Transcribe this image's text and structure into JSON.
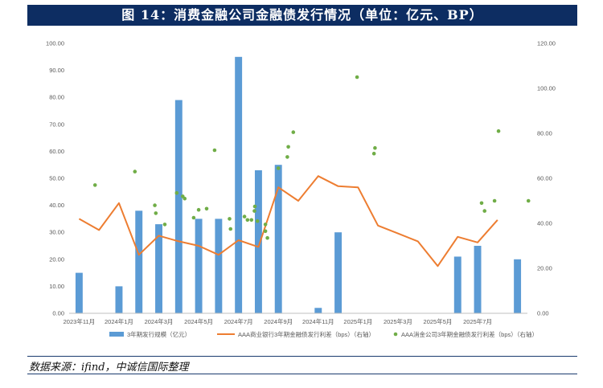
{
  "header": {
    "title": "图 14：消费金融公司金融债发行情况（单位：亿元、BP）"
  },
  "source": "数据来源：ifind，中诚信国际整理",
  "chart_data": {
    "type": "bar",
    "x_tick_labels": [
      "2023年11月",
      "2024年1月",
      "2024年3月",
      "2024年5月",
      "2024年7月",
      "2024年9月",
      "2024年11月",
      "2025年1月",
      "2025年3月",
      "2025年5月",
      "2025年7月"
    ],
    "left_axis": {
      "min": 0,
      "max": 100,
      "ticks": [
        "0.00",
        "10.00",
        "20.00",
        "30.00",
        "40.00",
        "50.00",
        "60.00",
        "70.00",
        "80.00",
        "90.00",
        "100.00"
      ]
    },
    "right_axis": {
      "min": 0,
      "max": 120,
      "ticks": [
        "0.00",
        "20.00",
        "40.00",
        "60.00",
        "80.00",
        "100.00",
        "120.00"
      ]
    },
    "bars": {
      "name": "3年期发行规模（亿元）",
      "color": "#5b9bd5",
      "points": [
        {
          "x": 0,
          "value": 15
        },
        {
          "x": 2,
          "value": 10
        },
        {
          "x": 3,
          "value": 38
        },
        {
          "x": 4,
          "value": 33
        },
        {
          "x": 5,
          "value": 79
        },
        {
          "x": 6,
          "value": 35
        },
        {
          "x": 7,
          "value": 35
        },
        {
          "x": 8,
          "value": 95
        },
        {
          "x": 9,
          "value": 53
        },
        {
          "x": 10,
          "value": 55
        },
        {
          "x": 12,
          "value": 2
        },
        {
          "x": 13,
          "value": 30
        },
        {
          "x": 19,
          "value": 21
        },
        {
          "x": 20,
          "value": 25
        },
        {
          "x": 22,
          "value": 20
        }
      ]
    },
    "line": {
      "name": "AAA商业银行3年期金融债发行利差（bps）（右轴）",
      "color": "#ed7d31",
      "points": [
        {
          "x": 0,
          "value": 42
        },
        {
          "x": 1,
          "value": 37
        },
        {
          "x": 2,
          "value": 49
        },
        {
          "x": 3,
          "value": 26
        },
        {
          "x": 4,
          "value": 34.5
        },
        {
          "x": 5,
          "value": 32
        },
        {
          "x": 6,
          "value": 30
        },
        {
          "x": 7,
          "value": 26
        },
        {
          "x": 8,
          "value": 32.5
        },
        {
          "x": 9,
          "value": 29.5
        },
        {
          "x": 10,
          "value": 56
        },
        {
          "x": 11,
          "value": 50
        },
        {
          "x": 12,
          "value": 61
        },
        {
          "x": 13,
          "value": 56.5
        },
        {
          "x": 14,
          "value": 56
        },
        {
          "x": 15,
          "value": 39
        },
        {
          "x": 16,
          "value": 35.5
        },
        {
          "x": 17,
          "value": 32
        },
        {
          "x": 18,
          "value": 21
        },
        {
          "x": 19,
          "value": 34
        },
        {
          "x": 20,
          "value": 31.5
        },
        {
          "x": 21,
          "value": 41.5
        }
      ]
    },
    "scatter": {
      "name": "AAA消金公司3年期金融债发行利差（bps）（右轴）",
      "color": "#70ad47",
      "points": [
        {
          "x": 0.8,
          "value": 57
        },
        {
          "x": 2.8,
          "value": 63
        },
        {
          "x": 3.8,
          "value": 48
        },
        {
          "x": 3.85,
          "value": 44.5
        },
        {
          "x": 4.3,
          "value": 39.5
        },
        {
          "x": 4.9,
          "value": 53.5
        },
        {
          "x": 5.2,
          "value": 52
        },
        {
          "x": 5.3,
          "value": 51
        },
        {
          "x": 5.75,
          "value": 42.5
        },
        {
          "x": 6.0,
          "value": 46
        },
        {
          "x": 6.4,
          "value": 46.5
        },
        {
          "x": 6.8,
          "value": 72.5
        },
        {
          "x": 7.55,
          "value": 42
        },
        {
          "x": 7.6,
          "value": 37.5
        },
        {
          "x": 8.3,
          "value": 43
        },
        {
          "x": 8.45,
          "value": 41.5
        },
        {
          "x": 8.65,
          "value": 41.5
        },
        {
          "x": 8.8,
          "value": 45.5
        },
        {
          "x": 8.82,
          "value": 47.5
        },
        {
          "x": 8.95,
          "value": 41
        },
        {
          "x": 9.35,
          "value": 39.5
        },
        {
          "x": 9.35,
          "value": 36.5
        },
        {
          "x": 9.45,
          "value": 33.5
        },
        {
          "x": 10.0,
          "value": 64.5
        },
        {
          "x": 10.45,
          "value": 69.5
        },
        {
          "x": 10.5,
          "value": 74
        },
        {
          "x": 10.75,
          "value": 80.5
        },
        {
          "x": 13.95,
          "value": 105
        },
        {
          "x": 14.8,
          "value": 71
        },
        {
          "x": 14.85,
          "value": 73.5
        },
        {
          "x": 20.2,
          "value": 49
        },
        {
          "x": 20.35,
          "value": 45.5
        },
        {
          "x": 20.85,
          "value": 50
        },
        {
          "x": 21.05,
          "value": 81
        },
        {
          "x": 22.55,
          "value": 50
        }
      ]
    },
    "legend_placement": "bottom",
    "grid": false
  },
  "colors": {
    "title_bg": "#0d2d62",
    "bar": "#5b9bd5",
    "line": "#ed7d31",
    "scatter": "#70ad47"
  }
}
